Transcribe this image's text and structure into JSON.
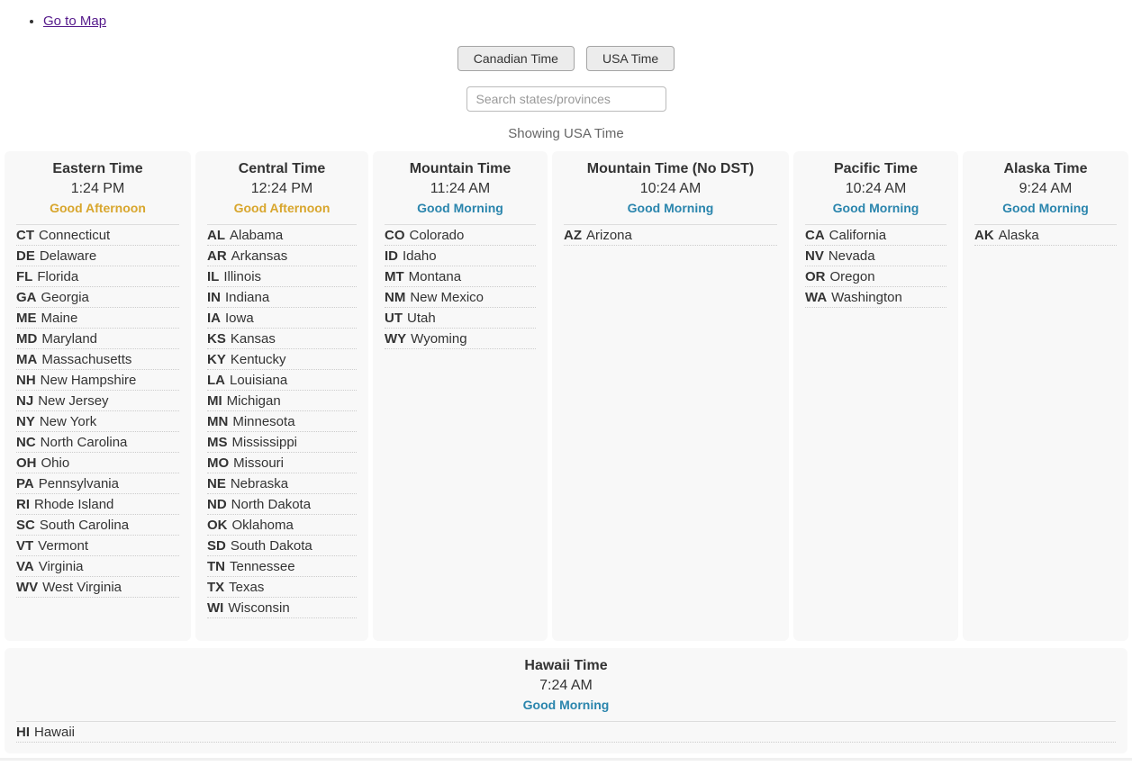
{
  "link": {
    "go_to_map": "Go to Map"
  },
  "toolbar": {
    "canadian_button": "Canadian Time",
    "usa_button": "USA Time"
  },
  "search": {
    "placeholder": "Search states/provinces",
    "value": ""
  },
  "status": {
    "showing": "Showing USA Time"
  },
  "colors": {
    "afternoon": "#D8A62D",
    "morning": "#2A85AD"
  },
  "zones": [
    {
      "name": "Eastern Time",
      "time": "1:24 PM",
      "greeting": "Good Afternoon",
      "greeting_type": "afternoon",
      "states": [
        {
          "abbr": "CT",
          "name": "Connecticut"
        },
        {
          "abbr": "DE",
          "name": "Delaware"
        },
        {
          "abbr": "FL",
          "name": "Florida"
        },
        {
          "abbr": "GA",
          "name": "Georgia"
        },
        {
          "abbr": "ME",
          "name": "Maine"
        },
        {
          "abbr": "MD",
          "name": "Maryland"
        },
        {
          "abbr": "MA",
          "name": "Massachusetts"
        },
        {
          "abbr": "NH",
          "name": "New Hampshire"
        },
        {
          "abbr": "NJ",
          "name": "New Jersey"
        },
        {
          "abbr": "NY",
          "name": "New York"
        },
        {
          "abbr": "NC",
          "name": "North Carolina"
        },
        {
          "abbr": "OH",
          "name": "Ohio"
        },
        {
          "abbr": "PA",
          "name": "Pennsylvania"
        },
        {
          "abbr": "RI",
          "name": "Rhode Island"
        },
        {
          "abbr": "SC",
          "name": "South Carolina"
        },
        {
          "abbr": "VT",
          "name": "Vermont"
        },
        {
          "abbr": "VA",
          "name": "Virginia"
        },
        {
          "abbr": "WV",
          "name": "West Virginia"
        }
      ]
    },
    {
      "name": "Central Time",
      "time": "12:24 PM",
      "greeting": "Good Afternoon",
      "greeting_type": "afternoon",
      "states": [
        {
          "abbr": "AL",
          "name": "Alabama"
        },
        {
          "abbr": "AR",
          "name": "Arkansas"
        },
        {
          "abbr": "IL",
          "name": "Illinois"
        },
        {
          "abbr": "IN",
          "name": "Indiana"
        },
        {
          "abbr": "IA",
          "name": "Iowa"
        },
        {
          "abbr": "KS",
          "name": "Kansas"
        },
        {
          "abbr": "KY",
          "name": "Kentucky"
        },
        {
          "abbr": "LA",
          "name": "Louisiana"
        },
        {
          "abbr": "MI",
          "name": "Michigan"
        },
        {
          "abbr": "MN",
          "name": "Minnesota"
        },
        {
          "abbr": "MS",
          "name": "Mississippi"
        },
        {
          "abbr": "MO",
          "name": "Missouri"
        },
        {
          "abbr": "NE",
          "name": "Nebraska"
        },
        {
          "abbr": "ND",
          "name": "North Dakota"
        },
        {
          "abbr": "OK",
          "name": "Oklahoma"
        },
        {
          "abbr": "SD",
          "name": "South Dakota"
        },
        {
          "abbr": "TN",
          "name": "Tennessee"
        },
        {
          "abbr": "TX",
          "name": "Texas"
        },
        {
          "abbr": "WI",
          "name": "Wisconsin"
        }
      ]
    },
    {
      "name": "Mountain Time",
      "time": "11:24 AM",
      "greeting": "Good Morning",
      "greeting_type": "morning",
      "states": [
        {
          "abbr": "CO",
          "name": "Colorado"
        },
        {
          "abbr": "ID",
          "name": "Idaho"
        },
        {
          "abbr": "MT",
          "name": "Montana"
        },
        {
          "abbr": "NM",
          "name": "New Mexico"
        },
        {
          "abbr": "UT",
          "name": "Utah"
        },
        {
          "abbr": "WY",
          "name": "Wyoming"
        }
      ]
    },
    {
      "name": "Mountain Time (No DST)",
      "time": "10:24 AM",
      "greeting": "Good Morning",
      "greeting_type": "morning",
      "states": [
        {
          "abbr": "AZ",
          "name": "Arizona"
        }
      ]
    },
    {
      "name": "Pacific Time",
      "time": "10:24 AM",
      "greeting": "Good Morning",
      "greeting_type": "morning",
      "states": [
        {
          "abbr": "CA",
          "name": "California"
        },
        {
          "abbr": "NV",
          "name": "Nevada"
        },
        {
          "abbr": "OR",
          "name": "Oregon"
        },
        {
          "abbr": "WA",
          "name": "Washington"
        }
      ]
    },
    {
      "name": "Alaska Time",
      "time": "9:24 AM",
      "greeting": "Good Morning",
      "greeting_type": "morning",
      "states": [
        {
          "abbr": "AK",
          "name": "Alaska"
        }
      ]
    }
  ],
  "hawaii_zone": {
    "name": "Hawaii Time",
    "time": "7:24 AM",
    "greeting": "Good Morning",
    "greeting_type": "morning",
    "states": [
      {
        "abbr": "HI",
        "name": "Hawaii"
      }
    ]
  }
}
